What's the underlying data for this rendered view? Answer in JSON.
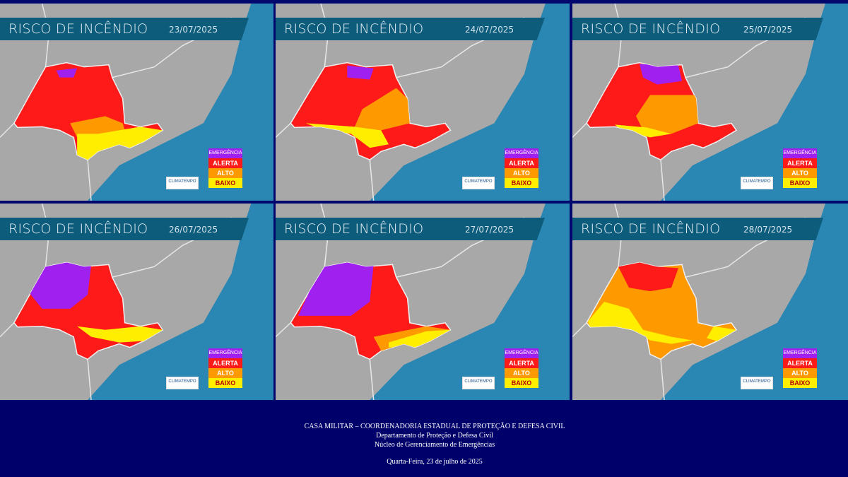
{
  "maps": [
    {
      "title": "RISCO DE INCÊNDIO",
      "date": "23/07/2025"
    },
    {
      "title": "RISCO DE INCÊNDIO",
      "date": "24/07/2025"
    },
    {
      "title": "RISCO DE INCÊNDIO",
      "date": "25/07/2025"
    },
    {
      "title": "RISCO DE INCÊNDIO",
      "date": "26/07/2025"
    },
    {
      "title": "RISCO DE INCÊNDIO",
      "date": "27/07/2025"
    },
    {
      "title": "RISCO DE INCÊNDIO",
      "date": "28/07/2025"
    }
  ],
  "legend": [
    {
      "label": "EMERGÊNCIA",
      "color": "#a020f0"
    },
    {
      "label": "ALERTA",
      "color": "#ff1a1a"
    },
    {
      "label": "ALTO",
      "color": "#ff9900"
    },
    {
      "label": "BAIXO",
      "color": "#ffee00"
    }
  ],
  "logo": "CLIMATEMPO",
  "footer": {
    "line1": "CASA MILITAR – COORDENADORIA ESTADUAL DE PROTEÇÃO E DEFESA CIVIL",
    "line2": "Departamento de Proteção e Defesa Civil",
    "line3": "Núcleo de Gerenciamento de Emergências",
    "line4": "Quarta-Feira, 23 de julho de 2025"
  },
  "colors": {
    "ocean": "#2a86b2",
    "land": "#a8a8a8",
    "titlebar": "#0e5c7c",
    "background": "#00086e"
  }
}
